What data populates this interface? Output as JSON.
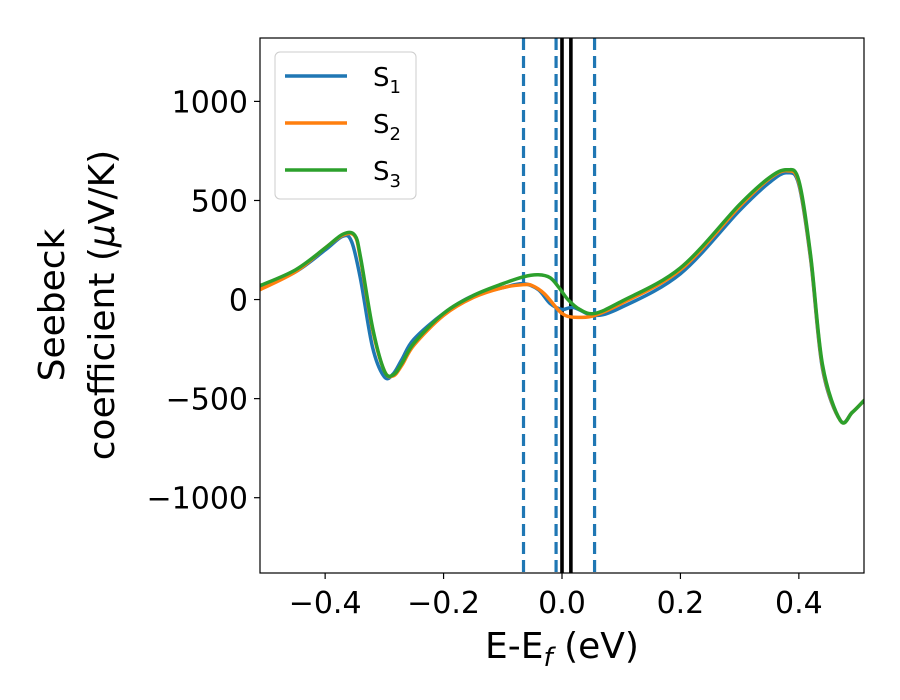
{
  "chart_data": {
    "type": "line",
    "title": "",
    "xlabel": {
      "main": "E-E",
      "sub": "f",
      "unit": " (eV)"
    },
    "ylabel": {
      "line1": "Seebeck",
      "line2_prefix": "coefficient  (",
      "mu": "μ",
      "line2_suffix": "V/K)"
    },
    "xlim": [
      -0.51,
      0.51
    ],
    "ylim": [
      -1380,
      1320
    ],
    "xticks": [
      -0.4,
      -0.2,
      0.0,
      0.2,
      0.4
    ],
    "xtick_labels": [
      "−0.4",
      "−0.2",
      "0.0",
      "0.2",
      "0.4"
    ],
    "yticks": [
      1000,
      500,
      0,
      -500,
      -1000
    ],
    "ytick_labels": [
      "1000",
      "500",
      "0",
      "−500",
      "−1000"
    ],
    "grid": false,
    "legend_position": "top-left",
    "series": [
      {
        "name": "S",
        "name_sub": "1",
        "color": "#1f77b4",
        "x": [
          -0.51,
          -0.45,
          -0.4,
          -0.37,
          -0.355,
          -0.34,
          -0.32,
          -0.3,
          -0.285,
          -0.27,
          -0.25,
          -0.2,
          -0.15,
          -0.1,
          -0.065,
          -0.04,
          -0.02,
          0.0,
          0.02,
          0.055,
          0.1,
          0.2,
          0.3,
          0.35,
          0.38,
          0.4,
          0.42,
          0.44,
          0.47,
          0.49,
          0.51
        ],
        "y": [
          60,
          140,
          250,
          320,
          290,
          100,
          -240,
          -390,
          -375,
          -300,
          -200,
          -70,
          20,
          60,
          80,
          50,
          -20,
          -50,
          -40,
          -80,
          -40,
          130,
          450,
          590,
          640,
          580,
          200,
          -350,
          -610,
          -570,
          -510
        ]
      },
      {
        "name": "S",
        "name_sub": "2",
        "color": "#ff7f0e",
        "x": [
          -0.51,
          -0.45,
          -0.4,
          -0.37,
          -0.35,
          -0.34,
          -0.32,
          -0.3,
          -0.285,
          -0.27,
          -0.25,
          -0.2,
          -0.15,
          -0.1,
          -0.065,
          -0.05,
          -0.03,
          -0.01,
          0.0,
          0.01,
          0.03,
          0.055,
          0.1,
          0.2,
          0.3,
          0.35,
          0.38,
          0.4,
          0.42,
          0.44,
          0.47,
          0.49,
          0.51
        ],
        "y": [
          50,
          140,
          260,
          325,
          320,
          200,
          -150,
          -360,
          -385,
          -330,
          -230,
          -80,
          10,
          60,
          75,
          70,
          30,
          -40,
          -70,
          -85,
          -90,
          -80,
          -20,
          150,
          470,
          610,
          650,
          590,
          210,
          -340,
          -610,
          -570,
          -510
        ]
      },
      {
        "name": "S",
        "name_sub": "3",
        "color": "#2ca02c",
        "x": [
          -0.51,
          -0.45,
          -0.4,
          -0.37,
          -0.35,
          -0.34,
          -0.32,
          -0.3,
          -0.285,
          -0.27,
          -0.25,
          -0.2,
          -0.15,
          -0.1,
          -0.065,
          -0.04,
          -0.02,
          -0.005,
          0.01,
          0.03,
          0.055,
          0.1,
          0.2,
          0.3,
          0.35,
          0.38,
          0.4,
          0.42,
          0.44,
          0.47,
          0.49,
          0.51
        ],
        "y": [
          70,
          150,
          260,
          330,
          325,
          210,
          -140,
          -360,
          -380,
          -320,
          -220,
          -70,
          20,
          80,
          115,
          125,
          110,
          60,
          0,
          -50,
          -70,
          -10,
          160,
          480,
          615,
          655,
          600,
          220,
          -330,
          -610,
          -570,
          -510
        ]
      }
    ],
    "vlines": [
      {
        "x": -0.065,
        "color": "#1f77b4",
        "style": "dashed"
      },
      {
        "x": -0.01,
        "color": "#1f77b4",
        "style": "dashed"
      },
      {
        "x": 0.0,
        "color": "#000000",
        "style": "solid"
      },
      {
        "x": 0.015,
        "color": "#000000",
        "style": "solid"
      },
      {
        "x": 0.055,
        "color": "#1f77b4",
        "style": "dashed"
      }
    ]
  }
}
